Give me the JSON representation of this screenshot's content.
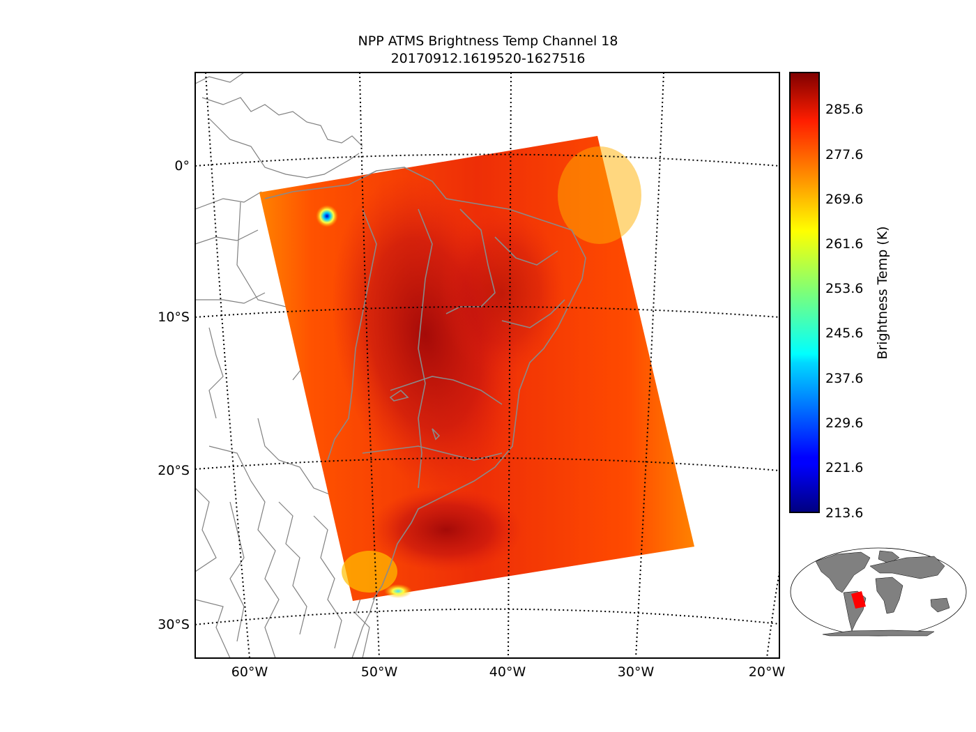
{
  "title": {
    "line1": "NPP ATMS Brightness Temp Channel 18",
    "line2": "20170912.1619520-1627516"
  },
  "map": {
    "lat_labels": [
      "0°",
      "10°S",
      "20°S",
      "30°S"
    ],
    "lon_labels": [
      "60°W",
      "50°W",
      "40°W",
      "30°W",
      "20°W"
    ],
    "swath_colors": {
      "edge": "#ff9a00",
      "mid": "#f03010",
      "core": "#a80808"
    }
  },
  "colorbar": {
    "label": "Brightness Temp (K)",
    "ticks": [
      "285.6",
      "277.6",
      "269.6",
      "261.6",
      "253.6",
      "245.6",
      "237.6",
      "229.6",
      "221.6",
      "213.6"
    ],
    "colormap": "jet"
  },
  "inset": {
    "land_color": "#808080",
    "highlight_color": "#ff0000"
  }
}
